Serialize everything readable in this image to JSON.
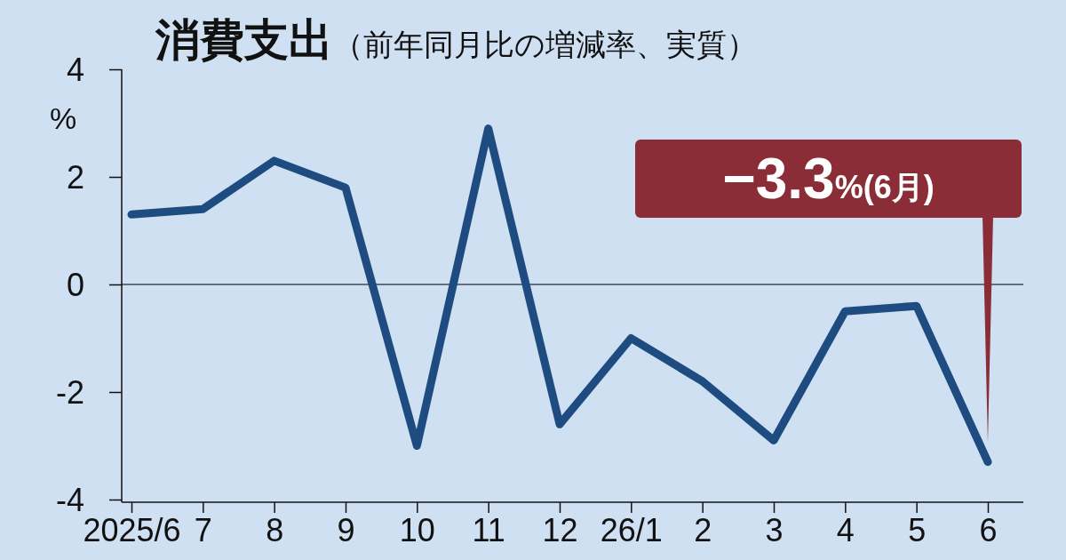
{
  "chart_data": {
    "type": "line",
    "title": "消費支出",
    "subtitle": "（前年同月比の増減率、実質）",
    "ylabel": "%",
    "categories": [
      "2025/6",
      "7",
      "8",
      "9",
      "10",
      "11",
      "12",
      "26/1",
      "2",
      "3",
      "4",
      "5",
      "6"
    ],
    "series": [
      {
        "color": "#1f4c80",
        "values": [
          1.3,
          1.4,
          2.3,
          1.8,
          -3.0,
          2.9,
          -2.6,
          -1.0,
          -1.8,
          -2.9,
          -0.5,
          -0.4,
          -3.3
        ]
      }
    ],
    "ylim": [
      -4,
      4
    ],
    "yticks": [
      -4,
      -2,
      0,
      2,
      4
    ],
    "ref_lines": [
      {
        "axis": "y",
        "value": 0,
        "color": "#000000"
      }
    ],
    "annotations": [
      "−3.3%(6月)"
    ],
    "grid": false,
    "marker": "none",
    "line_style": "solid"
  }
}
